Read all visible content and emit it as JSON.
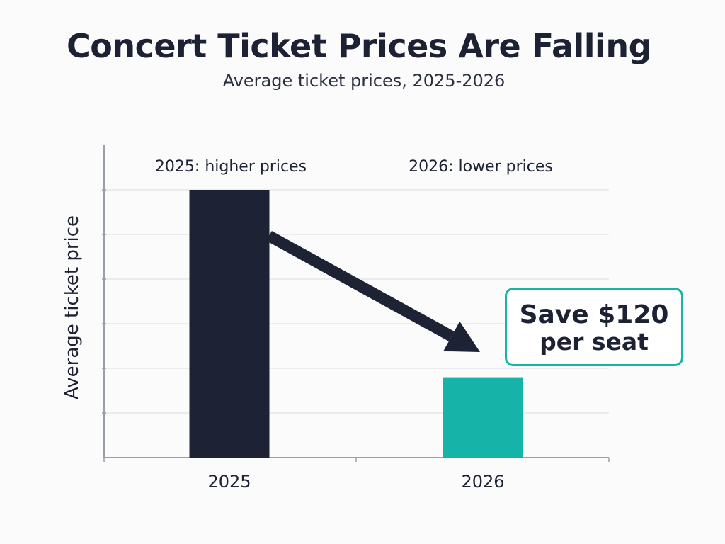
{
  "chart_data": {
    "type": "bar",
    "title": "Concert Ticket Prices Are Falling",
    "subtitle": "Average ticket prices, 2025-2026",
    "xlabel": "",
    "ylabel": "Average ticket price",
    "categories": [
      "2025",
      "2026"
    ],
    "values": [
      3.0,
      0.9
    ],
    "ylim": [
      0,
      3.5
    ],
    "grid": true,
    "legend": "none",
    "value_scale": "relative heights; y-axis has no numeric tick labels",
    "annotations": {
      "bar_labels": [
        "2025: higher prices",
        "2026: lower prices"
      ],
      "callout_line1": "Save $120",
      "callout_line2": "per seat",
      "trend_arrow": "down"
    },
    "colors": {
      "bar_2025": "#1d2235",
      "bar_2026": "#15b3a8",
      "arrow": "#1d2235",
      "callout_border": "#1ab3a6",
      "grid": "#e6e8ec",
      "axis": "#9aa0a8"
    }
  }
}
